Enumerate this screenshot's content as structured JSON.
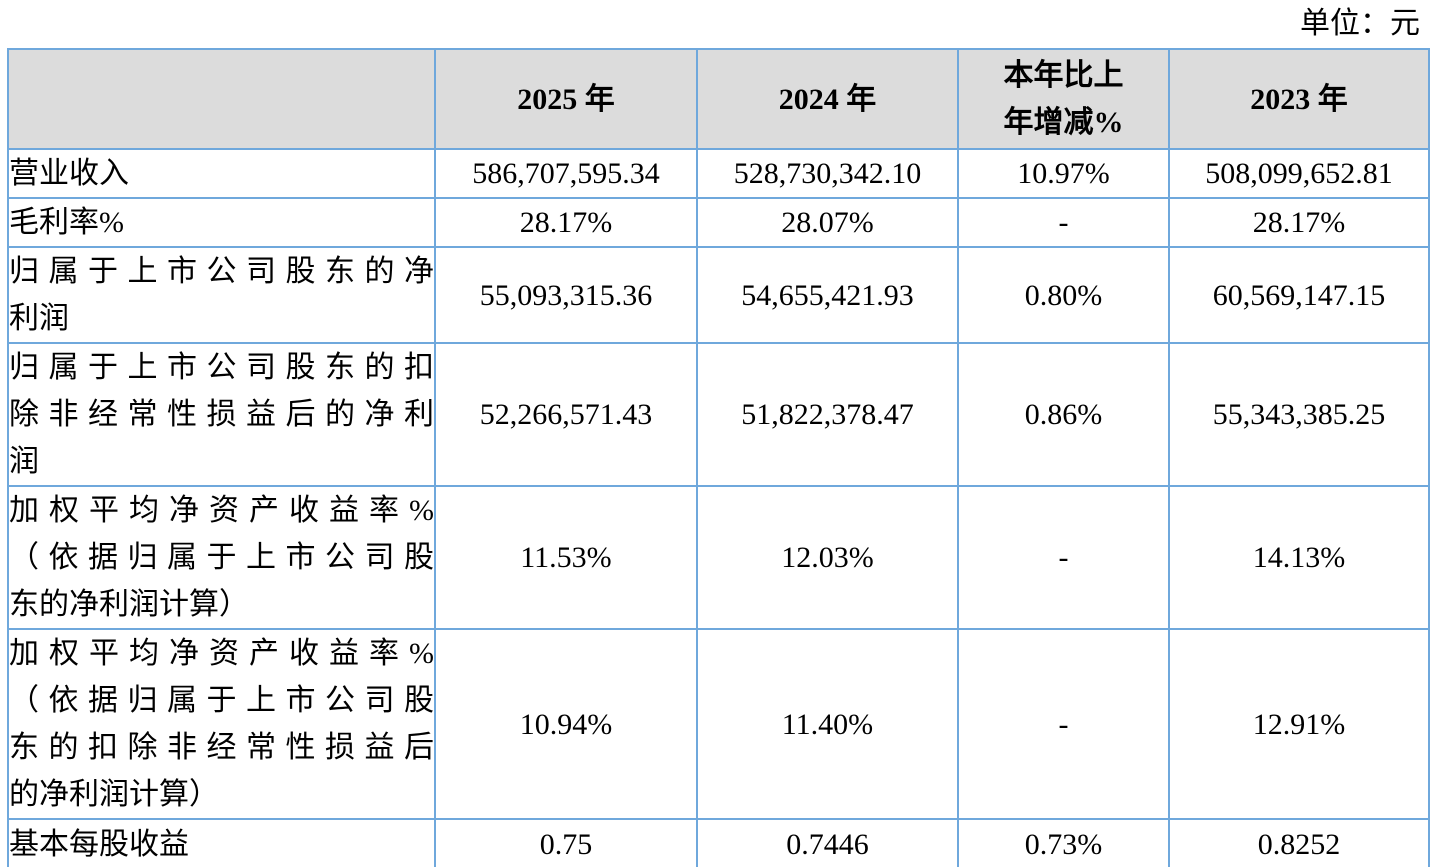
{
  "unit_label": "单位：元",
  "colors": {
    "table_border": "#6fa8dc",
    "header_background": "#dcdcdc",
    "text": "#000000",
    "body_background": "#ffffff"
  },
  "table": {
    "header": {
      "corner": "",
      "cols": [
        "2025 年",
        "2024 年",
        "本年比上\n年增减%",
        "2023 年"
      ]
    },
    "rows": [
      {
        "label": "营业收入",
        "values": [
          "586,707,595.34",
          "528,730,342.10",
          "10.97%",
          "508,099,652.81"
        ]
      },
      {
        "label": "毛利率%",
        "values": [
          "28.17%",
          "28.07%",
          "-",
          "28.17%"
        ]
      },
      {
        "label": "归属于上市公司股东的净\n利润",
        "values": [
          "55,093,315.36",
          "54,655,421.93",
          "0.80%",
          "60,569,147.15"
        ]
      },
      {
        "label": "归属于上市公司股东的扣\n除非经常性损益后的净利\n润",
        "values": [
          "52,266,571.43",
          "51,822,378.47",
          "0.86%",
          "55,343,385.25"
        ]
      },
      {
        "label": "加权平均净资产收益率%\n（依据归属于上市公司股\n东的净利润计算）",
        "values": [
          "11.53%",
          "12.03%",
          "-",
          "14.13%"
        ]
      },
      {
        "label": "加权平均净资产收益率%\n（依据归属于上市公司股\n东的扣除非经常性损益后\n的净利润计算）",
        "values": [
          "10.94%",
          "11.40%",
          "-",
          "12.91%"
        ]
      },
      {
        "label": "基本每股收益",
        "values": [
          "0.75",
          "0.7446",
          "0.73%",
          "0.8252"
        ]
      }
    ]
  }
}
